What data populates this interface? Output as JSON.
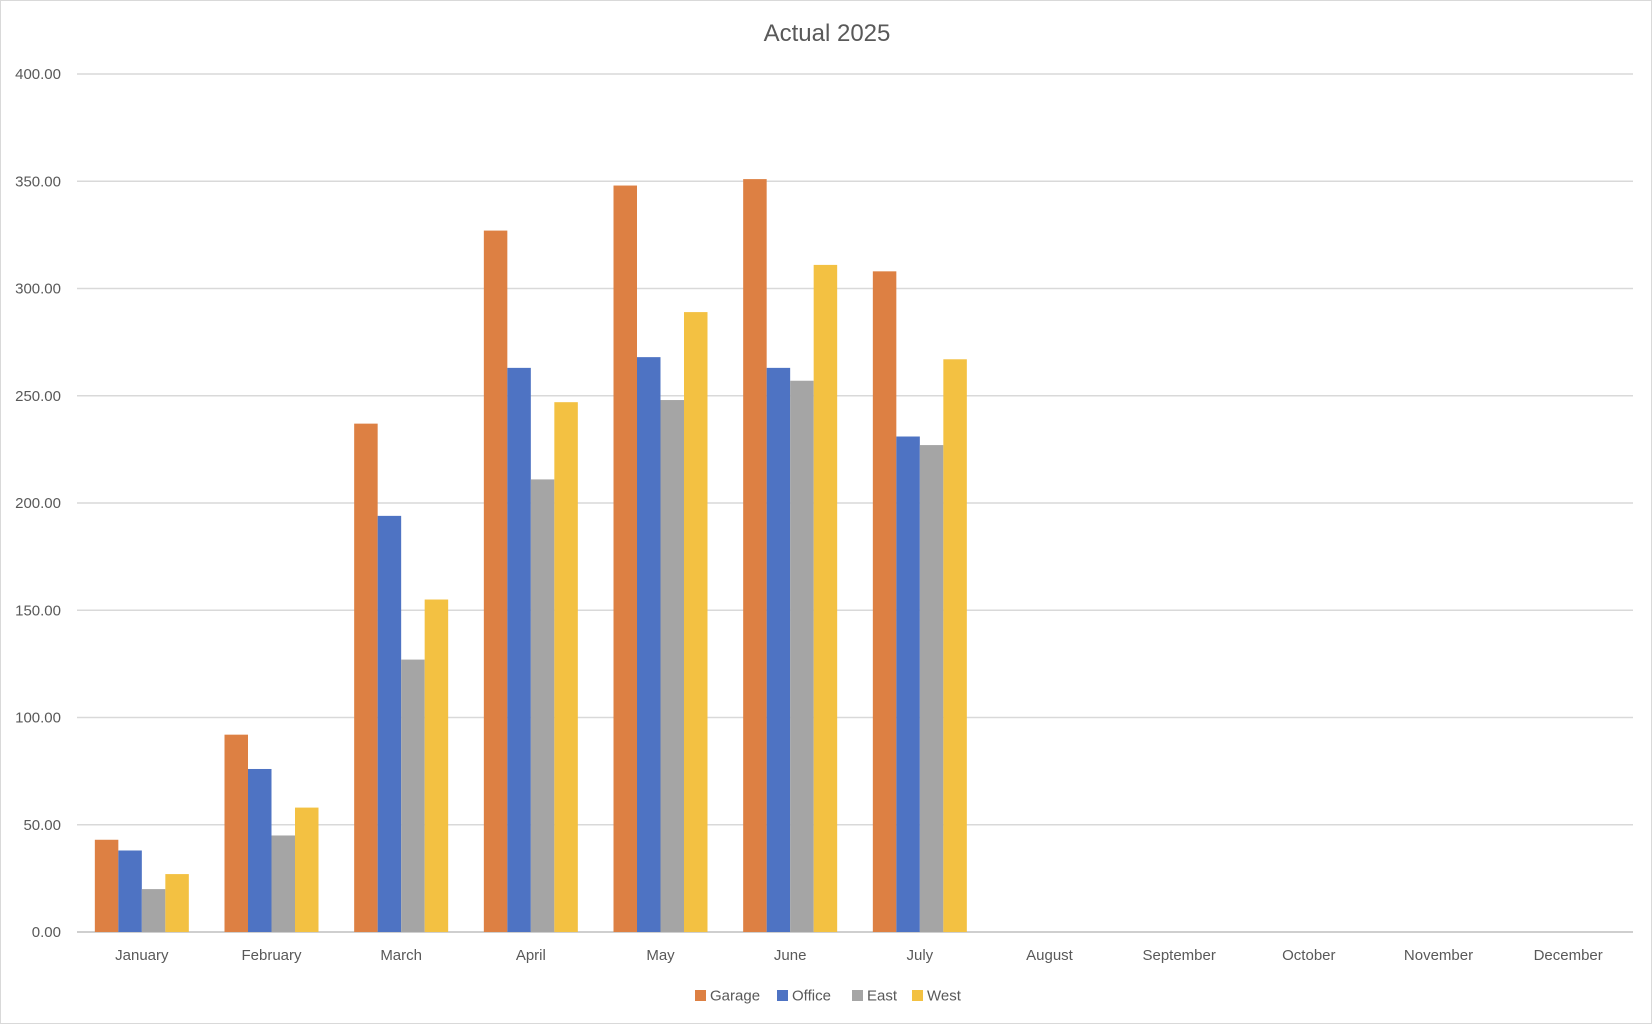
{
  "chart_data": {
    "type": "bar",
    "title": "Actual 2025",
    "xlabel": "",
    "ylabel": "",
    "ylim": [
      0,
      400
    ],
    "y_ticks": [
      "0.00",
      "50.00",
      "100.00",
      "150.00",
      "200.00",
      "250.00",
      "300.00",
      "350.00",
      "400.00"
    ],
    "grid": true,
    "legend_position": "bottom",
    "categories": [
      "January",
      "February",
      "March",
      "April",
      "May",
      "June",
      "July",
      "August",
      "September",
      "October",
      "November",
      "December"
    ],
    "series": [
      {
        "name": "Garage",
        "color": "#dd8043",
        "values": [
          43,
          92,
          237,
          327,
          348,
          351,
          308,
          null,
          null,
          null,
          null,
          null
        ]
      },
      {
        "name": "Office",
        "color": "#4e73c3",
        "values": [
          38,
          76,
          194,
          263,
          268,
          263,
          231,
          null,
          null,
          null,
          null,
          null
        ]
      },
      {
        "name": "East",
        "color": "#a5a5a5",
        "values": [
          20,
          45,
          127,
          211,
          248,
          257,
          227,
          null,
          null,
          null,
          null,
          null
        ]
      },
      {
        "name": "West",
        "color": "#f3c142",
        "values": [
          27,
          58,
          155,
          247,
          289,
          311,
          267,
          null,
          null,
          null,
          null,
          null
        ]
      }
    ]
  }
}
